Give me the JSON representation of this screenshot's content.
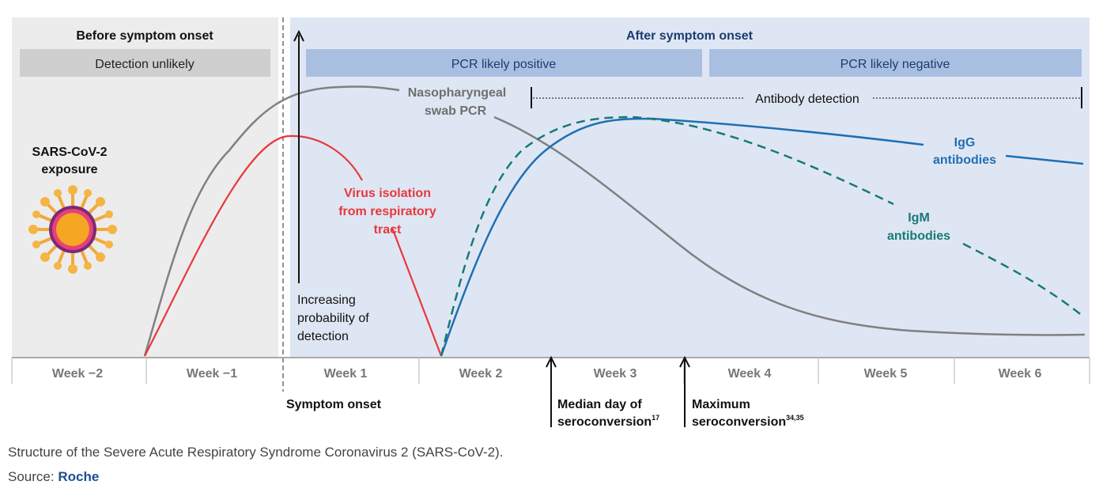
{
  "headers": {
    "before": "Before symptom onset",
    "after": "After symptom onset"
  },
  "bars": {
    "detection_unlikely": "Detection unlikely",
    "pcr_positive": "PCR likely positive",
    "pcr_negative": "PCR likely negative"
  },
  "exposure": {
    "line1": "SARS-CoV-2",
    "line2": "exposure"
  },
  "labels": {
    "pcr_line1": "Nasopharyngeal",
    "pcr_line2": "swab PCR",
    "virus_line1": "Virus isolation",
    "virus_line2": "from respiratory",
    "virus_line3": "tract",
    "antibody_detection": "Antibody detection",
    "igg_line1": "IgG",
    "igg_line2": "antibodies",
    "igm_line1": "IgM",
    "igm_line2": "antibodies",
    "prob_line1": "Increasing",
    "prob_line2": "probability of",
    "prob_line3": "detection"
  },
  "weeks": [
    "Week −2",
    "Week −1",
    "Week 1",
    "Week 2",
    "Week 3",
    "Week 4",
    "Week 5",
    "Week 6"
  ],
  "markers": {
    "symptom_onset": "Symptom onset",
    "median_line1": "Median day of",
    "median_line2": "seroconversion",
    "median_sup": "17",
    "max_line1": "Maximum",
    "max_line2": "seroconversion",
    "max_sup": "34,35"
  },
  "colors": {
    "pcr": "#808080",
    "virus": "#e8383d",
    "igg": "#1f6fb5",
    "igm": "#177a76"
  },
  "caption": "Structure of the Severe Acute Respiratory Syndrome Coronavirus 2 (SARS-CoV-2).",
  "source_label": "Source:",
  "source_link": "Roche"
}
